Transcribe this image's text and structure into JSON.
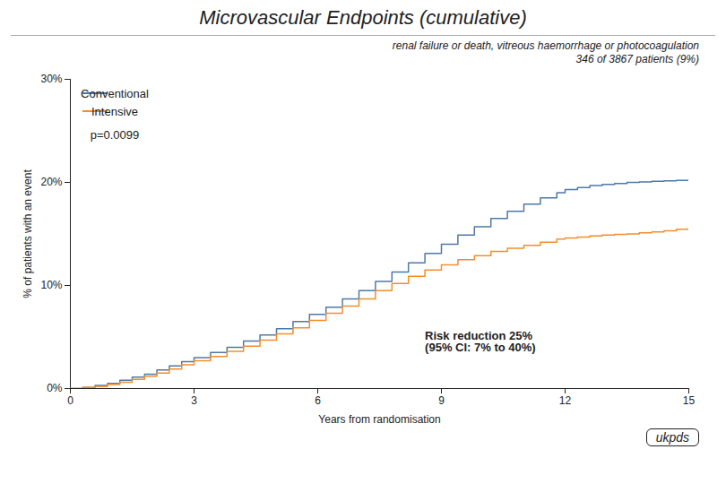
{
  "chart_data": {
    "type": "step",
    "title": "Microvascular Endpoints (cumulative)",
    "subtitle": "renal failure or death, vitreous haemorrhage or photocoagulation\n346 of 3867 patients (9%)",
    "x_label": "Years from randomisation",
    "y_label": "% of patients with an event",
    "x": [
      0,
      0.3,
      0.6,
      0.9,
      1.2,
      1.5,
      1.8,
      2.1,
      2.4,
      2.7,
      3.0,
      3.4,
      3.8,
      4.2,
      4.6,
      5.0,
      5.4,
      5.8,
      6.2,
      6.6,
      7.0,
      7.4,
      7.8,
      8.2,
      8.6,
      9.0,
      9.4,
      9.8,
      10.2,
      10.6,
      11.0,
      11.4,
      11.8,
      12.0,
      12.3,
      12.6,
      12.9,
      13.2,
      13.5,
      13.8,
      14.1,
      14.4,
      14.7,
      15.0
    ],
    "series": [
      {
        "name": "Conventional",
        "values": [
          0,
          0.1,
          0.3,
          0.5,
          0.8,
          1.1,
          1.4,
          1.8,
          2.2,
          2.6,
          3.0,
          3.5,
          4.0,
          4.6,
          5.2,
          5.8,
          6.5,
          7.2,
          7.9,
          8.7,
          9.5,
          10.4,
          11.3,
          12.2,
          13.1,
          14.0,
          14.9,
          15.7,
          16.5,
          17.2,
          17.9,
          18.5,
          19.0,
          19.3,
          19.5,
          19.7,
          19.8,
          19.9,
          20.0,
          20.05,
          20.1,
          20.15,
          20.2,
          20.3
        ]
      },
      {
        "name": "Intensive",
        "values": [
          0,
          0.1,
          0.2,
          0.4,
          0.6,
          0.9,
          1.2,
          1.5,
          1.9,
          2.3,
          2.7,
          3.1,
          3.6,
          4.1,
          4.7,
          5.3,
          5.9,
          6.6,
          7.3,
          8.0,
          8.7,
          9.5,
          10.2,
          10.9,
          11.5,
          12.0,
          12.5,
          12.9,
          13.3,
          13.6,
          13.9,
          14.2,
          14.5,
          14.6,
          14.7,
          14.8,
          14.9,
          14.95,
          15.0,
          15.1,
          15.2,
          15.3,
          15.45,
          15.6
        ]
      }
    ],
    "xlim": [
      0,
      15
    ],
    "ylim": [
      0,
      30
    ],
    "xticks": [
      0,
      3,
      6,
      9,
      12,
      15
    ],
    "yticks": [
      {
        "value": 0,
        "label": "0%"
      },
      {
        "value": 10,
        "label": "10%"
      },
      {
        "value": 20,
        "label": "20%"
      },
      {
        "value": 30,
        "label": "30%"
      }
    ],
    "grid": false,
    "legend": "upper left",
    "annotations": [
      {
        "text": "Risk reduction 25%\n(95% CI: 7% to 40%)",
        "x": 8.6,
        "y": 5.5
      },
      {
        "text": "p=0.0099"
      },
      {
        "text": "ukpds"
      }
    ]
  }
}
